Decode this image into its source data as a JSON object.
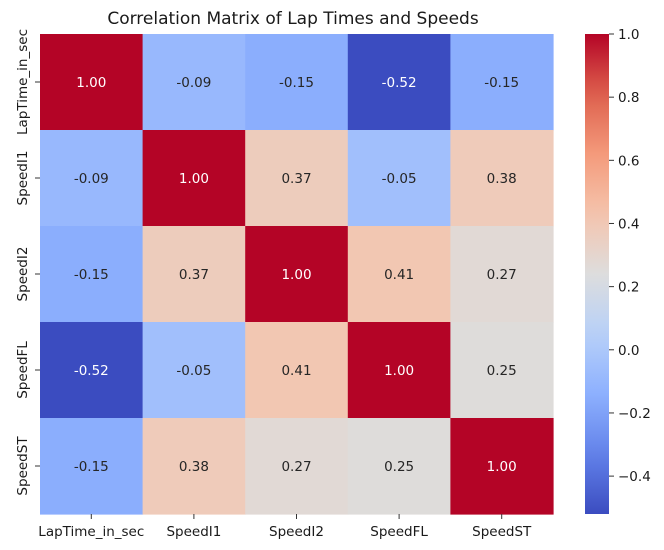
{
  "chart_data": {
    "type": "heatmap",
    "title": "Correlation Matrix of Lap Times and Speeds",
    "xlabel": "",
    "ylabel": "",
    "x_labels": [
      "LapTime_in_sec",
      "SpeedI1",
      "SpeedI2",
      "SpeedFL",
      "SpeedST"
    ],
    "y_labels": [
      "LapTime_in_sec",
      "SpeedI1",
      "SpeedI2",
      "SpeedFL",
      "SpeedST"
    ],
    "values": [
      [
        1.0,
        -0.09,
        -0.15,
        -0.52,
        -0.15
      ],
      [
        -0.09,
        1.0,
        0.37,
        -0.05,
        0.38
      ],
      [
        -0.15,
        0.37,
        1.0,
        0.41,
        0.27
      ],
      [
        -0.52,
        -0.05,
        0.41,
        1.0,
        0.25
      ],
      [
        -0.15,
        0.38,
        0.27,
        0.25,
        1.0
      ]
    ],
    "annotation_format": "0.00",
    "colormap": "coolwarm",
    "vmin": -0.52,
    "vmax": 1.0,
    "colorbar": {
      "ticks": [
        1.0,
        0.8,
        0.6,
        0.4,
        0.2,
        0.0,
        -0.2,
        -0.4
      ],
      "tick_labels": [
        "1.0",
        "0.8",
        "0.6",
        "0.4",
        "0.2",
        "0.0",
        "−0.2",
        "−0.4"
      ]
    },
    "grid": false,
    "legend": "colorbar-right"
  }
}
